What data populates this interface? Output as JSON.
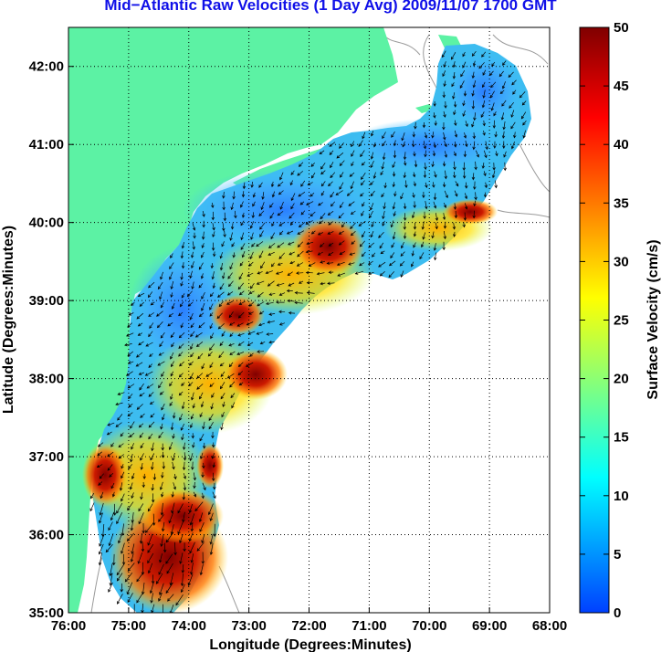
{
  "title": "Mid−Atlantic Raw Velocities (1 Day Avg) 2009/11/07 1700 GMT",
  "map": {
    "xlabel": "Longitude (Degrees:Minutes)",
    "ylabel": "Latitude (Degrees:Minutes)",
    "lon_range": [
      -76,
      -68
    ],
    "lat_range": [
      35,
      42.5
    ],
    "lon_ticks": [
      {
        "value": -76,
        "label": "76:00"
      },
      {
        "value": -75,
        "label": "75:00"
      },
      {
        "value": -74,
        "label": "74:00"
      },
      {
        "value": -73,
        "label": "73:00"
      },
      {
        "value": -72,
        "label": "72:00"
      },
      {
        "value": -71,
        "label": "71:00"
      },
      {
        "value": -70,
        "label": "70:00"
      },
      {
        "value": -69,
        "label": "69:00"
      },
      {
        "value": -68,
        "label": "68:00"
      }
    ],
    "lat_ticks": [
      {
        "value": 35,
        "label": "35:00"
      },
      {
        "value": 36,
        "label": "36:00"
      },
      {
        "value": 37,
        "label": "37:00"
      },
      {
        "value": 38,
        "label": "38:00"
      },
      {
        "value": 39,
        "label": "39:00"
      },
      {
        "value": 40,
        "label": "40:00"
      },
      {
        "value": 41,
        "label": "41:00"
      },
      {
        "value": 42,
        "label": "42:00"
      }
    ],
    "grid": true,
    "colors": {
      "land": "#5cf2a4",
      "sea": "#ffffff",
      "bathymetry": "#9a9a9a",
      "arrows": "#000000"
    }
  },
  "colorbar": {
    "label": "Surface Velocity (cm/s)",
    "range": [
      0,
      50
    ],
    "ticks": [
      {
        "value": 0,
        "label": "0"
      },
      {
        "value": 5,
        "label": "5"
      },
      {
        "value": 10,
        "label": "10"
      },
      {
        "value": 15,
        "label": "15"
      },
      {
        "value": 20,
        "label": "20"
      },
      {
        "value": 25,
        "label": "25"
      },
      {
        "value": 30,
        "label": "30"
      },
      {
        "value": 35,
        "label": "35"
      },
      {
        "value": 40,
        "label": "40"
      },
      {
        "value": 45,
        "label": "45"
      },
      {
        "value": 50,
        "label": "50"
      }
    ],
    "colormap": "jet"
  }
}
